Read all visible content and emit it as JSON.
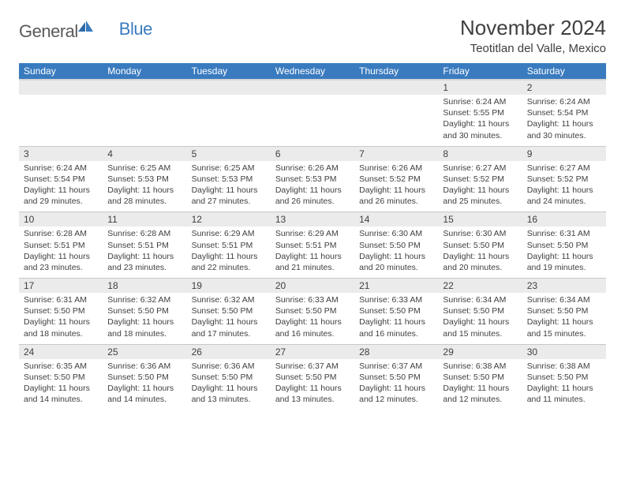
{
  "logo": {
    "text1": "General",
    "text2": "Blue"
  },
  "title": "November 2024",
  "location": "Teotitlan del Valle, Mexico",
  "colors": {
    "header_bg": "#3a7bbf",
    "header_text": "#ffffff",
    "daynum_bg": "#ebebeb",
    "text": "#3f3f3f",
    "logo_gray": "#5a5a5a",
    "logo_blue": "#3a7bbf",
    "border": "#c8c8c8"
  },
  "weekdays": [
    "Sunday",
    "Monday",
    "Tuesday",
    "Wednesday",
    "Thursday",
    "Friday",
    "Saturday"
  ],
  "weeks": [
    [
      null,
      null,
      null,
      null,
      null,
      {
        "n": "1",
        "sr": "6:24 AM",
        "ss": "5:55 PM",
        "dl": "11 hours and 30 minutes."
      },
      {
        "n": "2",
        "sr": "6:24 AM",
        "ss": "5:54 PM",
        "dl": "11 hours and 30 minutes."
      }
    ],
    [
      {
        "n": "3",
        "sr": "6:24 AM",
        "ss": "5:54 PM",
        "dl": "11 hours and 29 minutes."
      },
      {
        "n": "4",
        "sr": "6:25 AM",
        "ss": "5:53 PM",
        "dl": "11 hours and 28 minutes."
      },
      {
        "n": "5",
        "sr": "6:25 AM",
        "ss": "5:53 PM",
        "dl": "11 hours and 27 minutes."
      },
      {
        "n": "6",
        "sr": "6:26 AM",
        "ss": "5:53 PM",
        "dl": "11 hours and 26 minutes."
      },
      {
        "n": "7",
        "sr": "6:26 AM",
        "ss": "5:52 PM",
        "dl": "11 hours and 26 minutes."
      },
      {
        "n": "8",
        "sr": "6:27 AM",
        "ss": "5:52 PM",
        "dl": "11 hours and 25 minutes."
      },
      {
        "n": "9",
        "sr": "6:27 AM",
        "ss": "5:52 PM",
        "dl": "11 hours and 24 minutes."
      }
    ],
    [
      {
        "n": "10",
        "sr": "6:28 AM",
        "ss": "5:51 PM",
        "dl": "11 hours and 23 minutes."
      },
      {
        "n": "11",
        "sr": "6:28 AM",
        "ss": "5:51 PM",
        "dl": "11 hours and 23 minutes."
      },
      {
        "n": "12",
        "sr": "6:29 AM",
        "ss": "5:51 PM",
        "dl": "11 hours and 22 minutes."
      },
      {
        "n": "13",
        "sr": "6:29 AM",
        "ss": "5:51 PM",
        "dl": "11 hours and 21 minutes."
      },
      {
        "n": "14",
        "sr": "6:30 AM",
        "ss": "5:50 PM",
        "dl": "11 hours and 20 minutes."
      },
      {
        "n": "15",
        "sr": "6:30 AM",
        "ss": "5:50 PM",
        "dl": "11 hours and 20 minutes."
      },
      {
        "n": "16",
        "sr": "6:31 AM",
        "ss": "5:50 PM",
        "dl": "11 hours and 19 minutes."
      }
    ],
    [
      {
        "n": "17",
        "sr": "6:31 AM",
        "ss": "5:50 PM",
        "dl": "11 hours and 18 minutes."
      },
      {
        "n": "18",
        "sr": "6:32 AM",
        "ss": "5:50 PM",
        "dl": "11 hours and 18 minutes."
      },
      {
        "n": "19",
        "sr": "6:32 AM",
        "ss": "5:50 PM",
        "dl": "11 hours and 17 minutes."
      },
      {
        "n": "20",
        "sr": "6:33 AM",
        "ss": "5:50 PM",
        "dl": "11 hours and 16 minutes."
      },
      {
        "n": "21",
        "sr": "6:33 AM",
        "ss": "5:50 PM",
        "dl": "11 hours and 16 minutes."
      },
      {
        "n": "22",
        "sr": "6:34 AM",
        "ss": "5:50 PM",
        "dl": "11 hours and 15 minutes."
      },
      {
        "n": "23",
        "sr": "6:34 AM",
        "ss": "5:50 PM",
        "dl": "11 hours and 15 minutes."
      }
    ],
    [
      {
        "n": "24",
        "sr": "6:35 AM",
        "ss": "5:50 PM",
        "dl": "11 hours and 14 minutes."
      },
      {
        "n": "25",
        "sr": "6:36 AM",
        "ss": "5:50 PM",
        "dl": "11 hours and 14 minutes."
      },
      {
        "n": "26",
        "sr": "6:36 AM",
        "ss": "5:50 PM",
        "dl": "11 hours and 13 minutes."
      },
      {
        "n": "27",
        "sr": "6:37 AM",
        "ss": "5:50 PM",
        "dl": "11 hours and 13 minutes."
      },
      {
        "n": "28",
        "sr": "6:37 AM",
        "ss": "5:50 PM",
        "dl": "11 hours and 12 minutes."
      },
      {
        "n": "29",
        "sr": "6:38 AM",
        "ss": "5:50 PM",
        "dl": "11 hours and 12 minutes."
      },
      {
        "n": "30",
        "sr": "6:38 AM",
        "ss": "5:50 PM",
        "dl": "11 hours and 11 minutes."
      }
    ]
  ],
  "labels": {
    "sunrise": "Sunrise: ",
    "sunset": "Sunset: ",
    "daylight": "Daylight: "
  }
}
